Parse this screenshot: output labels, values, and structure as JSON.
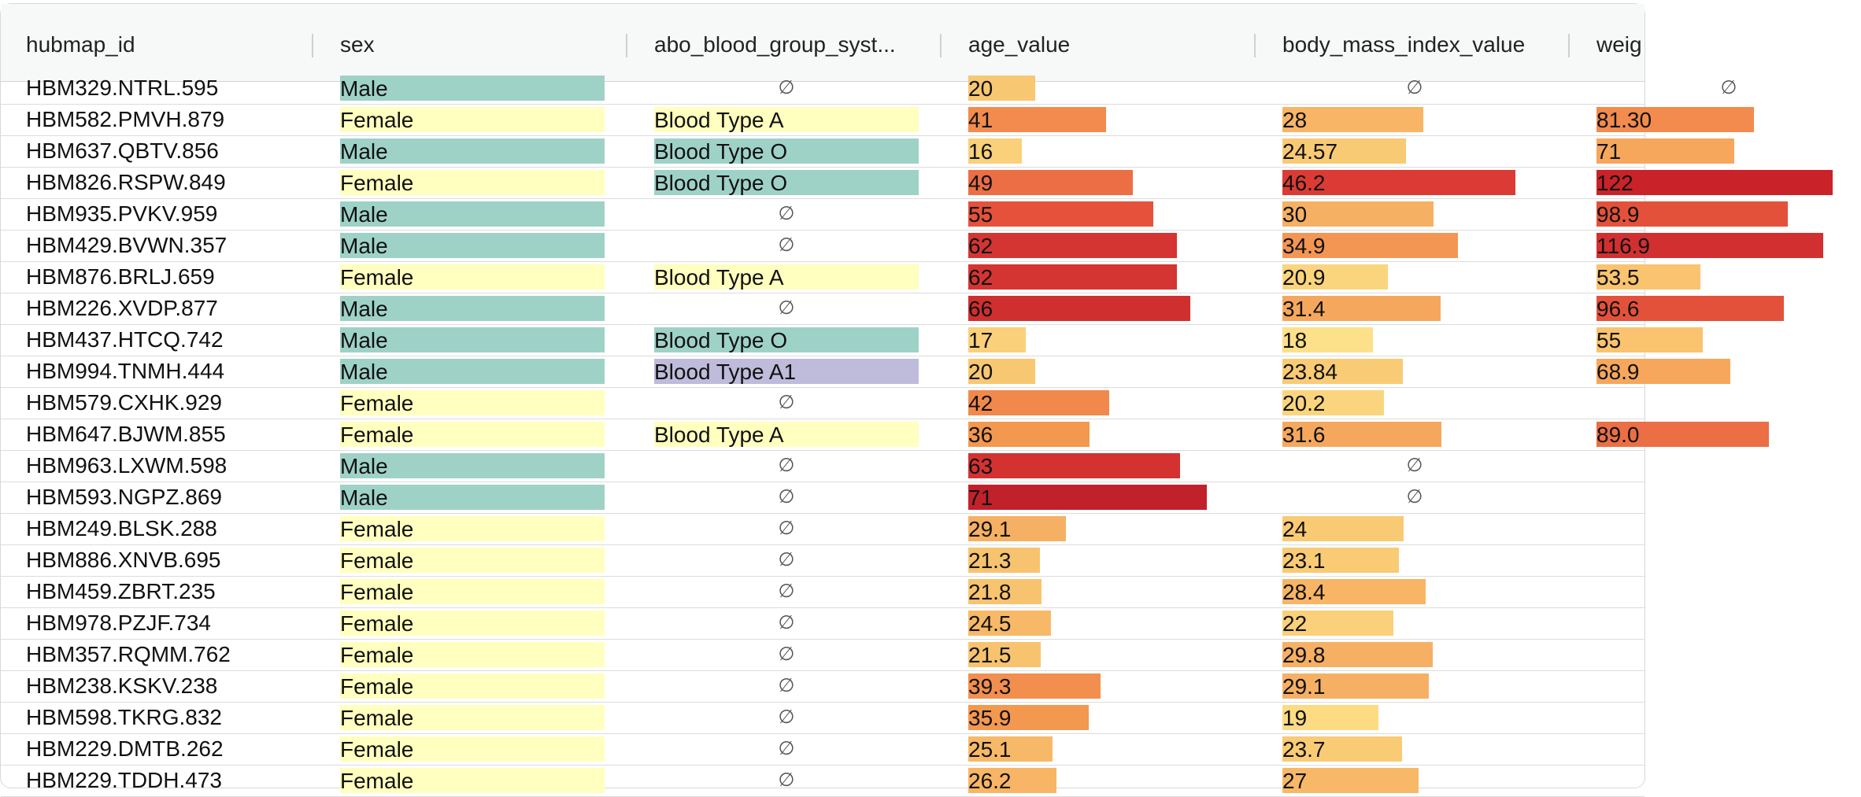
{
  "columns": [
    "hubmap_id",
    "sex",
    "abo_blood_group_syst...",
    "age_value",
    "body_mass_index_value",
    "weig"
  ],
  "null_symbol": "∅",
  "colors": {
    "male": "#9fd2c7",
    "female": "#ffffbf",
    "blood_a": "#ffffbf",
    "blood_o": "#9fd2c7",
    "blood_a1": "#bebbdb"
  },
  "rows": [
    {
      "id": "HBM329.NTRL.595",
      "sex": "Male",
      "blood": null,
      "age": "20",
      "age_color": "#f8c771",
      "bmi": null,
      "bmi_color": "",
      "weight": null,
      "weight_color": ""
    },
    {
      "id": "HBM582.PMVH.879",
      "sex": "Female",
      "blood": "Blood Type A",
      "age": "41",
      "age_color": "#f28b4d",
      "bmi": "28",
      "bmi_color": "#f7b565",
      "weight": "81.30",
      "weight_color": "#f28b4d"
    },
    {
      "id": "HBM637.QBTV.856",
      "sex": "Male",
      "blood": "Blood Type O",
      "age": "16",
      "age_color": "#fad07a",
      "bmi": "24.57",
      "bmi_color": "#f9ca74",
      "weight": "71",
      "weight_color": "#f6a75c"
    },
    {
      "id": "HBM826.RSPW.849",
      "sex": "Female",
      "blood": "Blood Type O",
      "age": "49",
      "age_color": "#ec6e45",
      "bmi": "46.2",
      "bmi_color": "#dc3b35",
      "weight": "122",
      "weight_color": "#c92229"
    },
    {
      "id": "HBM935.PVKV.959",
      "sex": "Male",
      "blood": null,
      "age": "55",
      "age_color": "#e5513b",
      "bmi": "30",
      "bmi_color": "#f6b064",
      "weight": "98.9",
      "weight_color": "#e4513b"
    },
    {
      "id": "HBM429.BVWN.357",
      "sex": "Male",
      "blood": null,
      "age": "62",
      "age_color": "#d43532",
      "bmi": "34.9",
      "bmi_color": "#f39653",
      "weight": "116.9",
      "weight_color": "#d12f30"
    },
    {
      "id": "HBM876.BRLJ.659",
      "sex": "Female",
      "blood": "Blood Type A",
      "age": "62",
      "age_color": "#d43532",
      "bmi": "20.9",
      "bmi_color": "#fbd57e",
      "weight": "53.5",
      "weight_color": "#f9c36f"
    },
    {
      "id": "HBM226.XVDP.877",
      "sex": "Male",
      "blood": null,
      "age": "66",
      "age_color": "#cf2f2f",
      "bmi": "31.4",
      "bmi_color": "#f5a85d",
      "weight": "96.6",
      "weight_color": "#e4513b"
    },
    {
      "id": "HBM437.HTCQ.742",
      "sex": "Male",
      "blood": "Blood Type O",
      "age": "17",
      "age_color": "#fad07a",
      "bmi": "18",
      "bmi_color": "#fde08a",
      "weight": "55",
      "weight_color": "#f9c36f"
    },
    {
      "id": "HBM994.TNMH.444",
      "sex": "Male",
      "blood": "Blood Type A1",
      "age": "20",
      "age_color": "#f8c771",
      "bmi": "23.84",
      "bmi_color": "#f9cb75",
      "weight": "68.9",
      "weight_color": "#f6a75c"
    },
    {
      "id": "HBM579.CXHK.929",
      "sex": "Female",
      "blood": null,
      "age": "42",
      "age_color": "#f2894c",
      "bmi": "20.2",
      "bmi_color": "#fbd57e",
      "weight": "",
      "weight_color": ""
    },
    {
      "id": "HBM647.BJWM.855",
      "sex": "Female",
      "blood": "Blood Type A",
      "age": "36",
      "age_color": "#f3984f",
      "bmi": "31.6",
      "bmi_color": "#f5a85d",
      "weight": "89.0",
      "weight_color": "#ec6e45"
    },
    {
      "id": "HBM963.LXWM.598",
      "sex": "Male",
      "blood": null,
      "age": "63",
      "age_color": "#d33231",
      "bmi": null,
      "bmi_color": "",
      "weight": "",
      "weight_color": ""
    },
    {
      "id": "HBM593.NGPZ.869",
      "sex": "Male",
      "blood": null,
      "age": "71",
      "age_color": "#c1212b",
      "bmi": null,
      "bmi_color": "",
      "weight": "",
      "weight_color": ""
    },
    {
      "id": "HBM249.BLSK.288",
      "sex": "Female",
      "blood": null,
      "age": "29.1",
      "age_color": "#f6b064",
      "bmi": "24",
      "bmi_color": "#f9ca74",
      "weight": "",
      "weight_color": ""
    },
    {
      "id": "HBM886.XNVB.695",
      "sex": "Female",
      "blood": null,
      "age": "21.3",
      "age_color": "#f8c36f",
      "bmi": "23.1",
      "bmi_color": "#f9cb75",
      "weight": "",
      "weight_color": ""
    },
    {
      "id": "HBM459.ZBRT.235",
      "sex": "Female",
      "blood": null,
      "age": "21.8",
      "age_color": "#f8c36f",
      "bmi": "28.4",
      "bmi_color": "#f7b565",
      "weight": "",
      "weight_color": ""
    },
    {
      "id": "HBM978.PZJF.734",
      "sex": "Female",
      "blood": null,
      "age": "24.5",
      "age_color": "#f7b967",
      "bmi": "22",
      "bmi_color": "#fad07a",
      "weight": "",
      "weight_color": ""
    },
    {
      "id": "HBM357.RQMM.762",
      "sex": "Female",
      "blood": null,
      "age": "21.5",
      "age_color": "#f8c36f",
      "bmi": "29.8",
      "bmi_color": "#f6b064",
      "weight": "",
      "weight_color": ""
    },
    {
      "id": "HBM238.KSKV.238",
      "sex": "Female",
      "blood": null,
      "age": "39.3",
      "age_color": "#f28f4e",
      "bmi": "29.1",
      "bmi_color": "#f6b064",
      "weight": "",
      "weight_color": ""
    },
    {
      "id": "HBM598.TKRG.832",
      "sex": "Female",
      "blood": null,
      "age": "35.9",
      "age_color": "#f3984f",
      "bmi": "19",
      "bmi_color": "#fcdb83",
      "weight": "",
      "weight_color": ""
    },
    {
      "id": "HBM229.DMTB.262",
      "sex": "Female",
      "blood": null,
      "age": "25.1",
      "age_color": "#f7b967",
      "bmi": "23.7",
      "bmi_color": "#f9cb75",
      "weight": "",
      "weight_color": ""
    },
    {
      "id": "HBM229.TDDH.473",
      "sex": "Female",
      "blood": null,
      "age": "26.2",
      "age_color": "#f7b565",
      "bmi": "27",
      "bmi_color": "#f7b967",
      "weight": "",
      "weight_color": ""
    }
  ]
}
